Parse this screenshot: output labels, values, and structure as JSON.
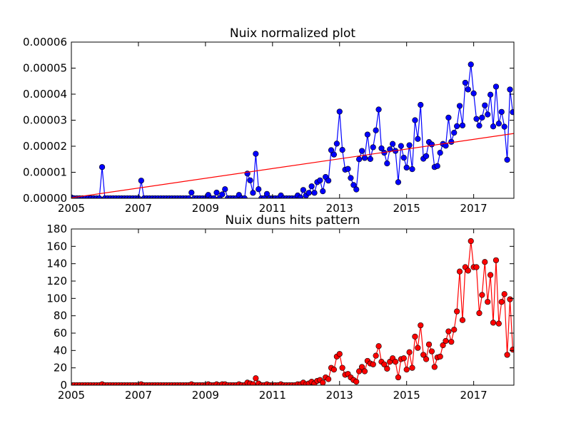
{
  "chart_data": [
    {
      "type": "line",
      "title": "Nuix normalized plot",
      "xlabel": "",
      "ylabel": "",
      "xlim": [
        2005.0,
        2018.2
      ],
      "ylim": [
        0,
        6e-05
      ],
      "xticks": [
        2005,
        2007,
        2009,
        2011,
        2013,
        2015,
        2017
      ],
      "xtick_labels": [
        "2005",
        "2007",
        "2009",
        "2011",
        "2013",
        "2015",
        "2017"
      ],
      "yticks": [
        0,
        1e-05,
        2e-05,
        3e-05,
        4e-05,
        5e-05,
        6e-05
      ],
      "ytick_labels": [
        "0.00000",
        "0.00001",
        "0.00002",
        "0.00003",
        "0.00004",
        "0.00005",
        "0.00006"
      ],
      "grid": false,
      "legend": "none",
      "series": [
        {
          "color": "#0000ff",
          "marker": "circle",
          "x": [
            2005.0,
            2005.083,
            2005.167,
            2005.25,
            2005.333,
            2005.417,
            2005.5,
            2005.583,
            2005.667,
            2005.75,
            2005.833,
            2005.917,
            2006.0,
            2006.083,
            2006.167,
            2006.25,
            2006.333,
            2006.417,
            2006.5,
            2006.583,
            2006.667,
            2006.75,
            2006.833,
            2006.917,
            2007.0,
            2007.083,
            2007.167,
            2007.25,
            2007.333,
            2007.417,
            2007.5,
            2007.583,
            2007.667,
            2007.75,
            2007.833,
            2007.917,
            2008.0,
            2008.083,
            2008.167,
            2008.25,
            2008.333,
            2008.417,
            2008.5,
            2008.583,
            2008.667,
            2008.75,
            2008.833,
            2008.917,
            2009.0,
            2009.083,
            2009.167,
            2009.25,
            2009.333,
            2009.417,
            2009.5,
            2009.583,
            2009.667,
            2009.75,
            2009.833,
            2009.917,
            2010.0,
            2010.083,
            2010.167,
            2010.25,
            2010.333,
            2010.417,
            2010.5,
            2010.583,
            2010.667,
            2010.75,
            2010.833,
            2010.917,
            2011.0,
            2011.083,
            2011.167,
            2011.25,
            2011.333,
            2011.417,
            2011.5,
            2011.583,
            2011.667,
            2011.75,
            2011.833,
            2011.917,
            2012.0,
            2012.083,
            2012.167,
            2012.25,
            2012.333,
            2012.417,
            2012.5,
            2012.583,
            2012.667,
            2012.75,
            2012.833,
            2012.917,
            2013.0,
            2013.083,
            2013.167,
            2013.25,
            2013.333,
            2013.417,
            2013.5,
            2013.583,
            2013.667,
            2013.75,
            2013.833,
            2013.917,
            2014.0,
            2014.083,
            2014.167,
            2014.25,
            2014.333,
            2014.417,
            2014.5,
            2014.583,
            2014.667,
            2014.75,
            2014.833,
            2014.917,
            2015.0,
            2015.083,
            2015.167,
            2015.25,
            2015.333,
            2015.417,
            2015.5,
            2015.583,
            2015.667,
            2015.75,
            2015.833,
            2015.917,
            2016.0,
            2016.083,
            2016.167,
            2016.25,
            2016.333,
            2016.417,
            2016.5,
            2016.583,
            2016.667,
            2016.75,
            2016.833,
            2016.917,
            2017.0,
            2017.083,
            2017.167,
            2017.25,
            2017.333,
            2017.417,
            2017.5,
            2017.583,
            2017.667,
            2017.75,
            2017.833,
            2017.917,
            2018.0,
            2018.083,
            2018.167
          ],
          "y": [
            3e-07,
            0,
            0,
            0,
            0,
            0,
            0,
            0,
            0,
            0,
            0,
            1.2e-05,
            0,
            0,
            0,
            0,
            0,
            0,
            0,
            0,
            0,
            0,
            0,
            0,
            0,
            6.8e-06,
            0,
            0,
            0,
            0,
            0,
            0,
            0,
            0,
            0,
            0,
            0,
            0,
            0,
            0,
            0,
            0,
            0,
            2.2e-06,
            0,
            0,
            0,
            0,
            0,
            1.3e-06,
            0,
            0,
            2.2e-06,
            0,
            1.5e-06,
            3.5e-06,
            0,
            0,
            0,
            0,
            1.3e-06,
            0,
            0,
            9.5e-06,
            6.9e-06,
            2.1e-06,
            1.71e-05,
            3.5e-06,
            0,
            0,
            1.7e-06,
            0,
            0,
            0,
            0,
            1.1e-06,
            0,
            0,
            0,
            0,
            0,
            1.1e-06,
            3e-07,
            3.2e-06,
            1.1e-06,
            2.1e-06,
            4.6e-06,
            2.1e-06,
            6.2e-06,
            6.9e-06,
            2.7e-06,
            8.2e-06,
            6.8e-06,
            1.85e-05,
            1.68e-05,
            2.1e-05,
            3.33e-05,
            1.86e-05,
            1.1e-05,
            1.13e-05,
            7.8e-06,
            5.1e-06,
            3.4e-06,
            1.5e-05,
            1.82e-05,
            1.55e-05,
            2.45e-05,
            1.51e-05,
            1.96e-05,
            2.61e-05,
            3.41e-05,
            1.92e-05,
            1.75e-05,
            1.34e-05,
            1.88e-05,
            2.09e-05,
            1.82e-05,
            6.2e-06,
            2.01e-05,
            1.56e-05,
            1.18e-05,
            2.04e-05,
            1.12e-05,
            3e-05,
            2.28e-05,
            3.59e-05,
            1.52e-05,
            1.62e-05,
            2.16e-05,
            2.07e-05,
            1.2e-05,
            1.24e-05,
            1.75e-05,
            2.09e-05,
            2.02e-05,
            3.1e-05,
            2.17e-05,
            2.52e-05,
            2.77e-05,
            3.55e-05,
            2.8e-05,
            4.44e-05,
            4.18e-05,
            5.14e-05,
            4.03e-05,
            3.05e-05,
            2.79e-05,
            3.1e-05,
            3.57e-05,
            3.22e-05,
            3.98e-05,
            2.76e-05,
            4.29e-05,
            2.87e-05,
            3.32e-05,
            2.75e-05,
            1.48e-05,
            4.18e-05,
            3.31e-05
          ]
        },
        {
          "color": "#ff0000",
          "marker": "none",
          "x": [
            2005.0,
            2018.2
          ],
          "y": [
            2e-07,
            2.49e-05
          ]
        }
      ]
    },
    {
      "type": "line",
      "title": "Nuix duns hits pattern",
      "xlabel": "",
      "ylabel": "",
      "xlim": [
        2005.0,
        2018.2
      ],
      "ylim": [
        0,
        180
      ],
      "xticks": [
        2005,
        2007,
        2009,
        2011,
        2013,
        2015,
        2017
      ],
      "xtick_labels": [
        "2005",
        "2007",
        "2009",
        "2011",
        "2013",
        "2015",
        "2017"
      ],
      "yticks": [
        0,
        20,
        40,
        60,
        80,
        100,
        120,
        140,
        160,
        180
      ],
      "ytick_labels": [
        "0",
        "20",
        "40",
        "60",
        "80",
        "100",
        "120",
        "140",
        "160",
        "180"
      ],
      "grid": false,
      "legend": "none",
      "series": [
        {
          "color": "#ff0000",
          "marker": "circle",
          "x": [
            2005.0,
            2005.083,
            2005.167,
            2005.25,
            2005.333,
            2005.417,
            2005.5,
            2005.583,
            2005.667,
            2005.75,
            2005.833,
            2005.917,
            2006.0,
            2006.083,
            2006.167,
            2006.25,
            2006.333,
            2006.417,
            2006.5,
            2006.583,
            2006.667,
            2006.75,
            2006.833,
            2006.917,
            2007.0,
            2007.083,
            2007.167,
            2007.25,
            2007.333,
            2007.417,
            2007.5,
            2007.583,
            2007.667,
            2007.75,
            2007.833,
            2007.917,
            2008.0,
            2008.083,
            2008.167,
            2008.25,
            2008.333,
            2008.417,
            2008.5,
            2008.583,
            2008.667,
            2008.75,
            2008.833,
            2008.917,
            2009.0,
            2009.083,
            2009.167,
            2009.25,
            2009.333,
            2009.417,
            2009.5,
            2009.583,
            2009.667,
            2009.75,
            2009.833,
            2009.917,
            2010.0,
            2010.083,
            2010.167,
            2010.25,
            2010.333,
            2010.417,
            2010.5,
            2010.583,
            2010.667,
            2010.75,
            2010.833,
            2010.917,
            2011.0,
            2011.083,
            2011.167,
            2011.25,
            2011.333,
            2011.417,
            2011.5,
            2011.583,
            2011.667,
            2011.75,
            2011.833,
            2011.917,
            2012.0,
            2012.083,
            2012.167,
            2012.25,
            2012.333,
            2012.417,
            2012.5,
            2012.583,
            2012.667,
            2012.75,
            2012.833,
            2012.917,
            2013.0,
            2013.083,
            2013.167,
            2013.25,
            2013.333,
            2013.417,
            2013.5,
            2013.583,
            2013.667,
            2013.75,
            2013.833,
            2013.917,
            2014.0,
            2014.083,
            2014.167,
            2014.25,
            2014.333,
            2014.417,
            2014.5,
            2014.583,
            2014.667,
            2014.75,
            2014.833,
            2014.917,
            2015.0,
            2015.083,
            2015.167,
            2015.25,
            2015.333,
            2015.417,
            2015.5,
            2015.583,
            2015.667,
            2015.75,
            2015.833,
            2015.917,
            2016.0,
            2016.083,
            2016.167,
            2016.25,
            2016.333,
            2016.417,
            2016.5,
            2016.583,
            2016.667,
            2016.75,
            2016.833,
            2016.917,
            2017.0,
            2017.083,
            2017.167,
            2017.25,
            2017.333,
            2017.417,
            2017.5,
            2017.583,
            2017.667,
            2017.75,
            2017.833,
            2017.917,
            2018.0,
            2018.083,
            2018.167
          ],
          "y": [
            0,
            0,
            0,
            0,
            0,
            0,
            0,
            0,
            0,
            0,
            0,
            1,
            0,
            0,
            0,
            0,
            0,
            0,
            0,
            0,
            0,
            0,
            0,
            0,
            0,
            1,
            0,
            0,
            0,
            0,
            0,
            0,
            0,
            0,
            0,
            0,
            0,
            0,
            0,
            0,
            0,
            0,
            0,
            1,
            0,
            0,
            0,
            0,
            0,
            1,
            0,
            0,
            1,
            0,
            1,
            1,
            0,
            0,
            0,
            0,
            1,
            0,
            0,
            3,
            2,
            1,
            8,
            2,
            0,
            0,
            1,
            0,
            0,
            0,
            0,
            1,
            0,
            0,
            0,
            0,
            0,
            1,
            1,
            3,
            1,
            2,
            4,
            2,
            5,
            6,
            3,
            9,
            7,
            20,
            18,
            33,
            36,
            20,
            12,
            13,
            9,
            6,
            4,
            16,
            21,
            16,
            28,
            25,
            24,
            34,
            45,
            27,
            24,
            19,
            27,
            31,
            27,
            9,
            30,
            31,
            18,
            38,
            20,
            56,
            43,
            69,
            35,
            30,
            47,
            39,
            21,
            32,
            33,
            46,
            51,
            62,
            50,
            64,
            85,
            131,
            75,
            136,
            132,
            166,
            136,
            136,
            83,
            104,
            142,
            96,
            127,
            72,
            144,
            71,
            96,
            105,
            35,
            99,
            41
          ]
        }
      ]
    }
  ]
}
